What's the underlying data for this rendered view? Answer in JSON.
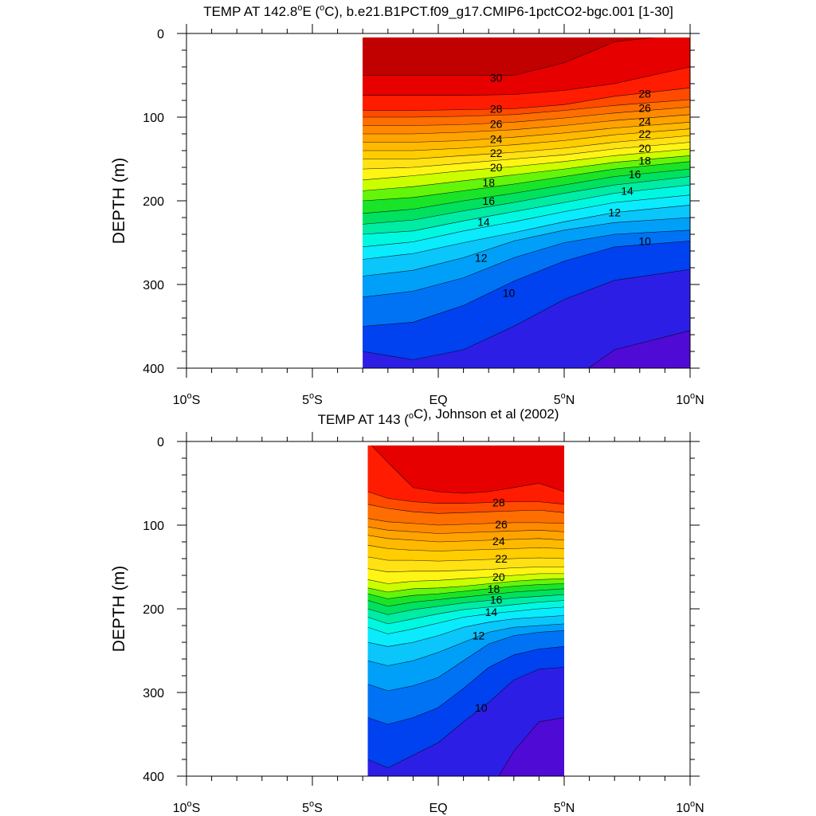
{
  "chart_data": [
    {
      "type": "contour",
      "title_prefix": "TEMP AT 142.8",
      "title_sup": "o",
      "title_mid": "E (",
      "title_unit_sup": "o",
      "title_suffix": "C), b.e21.B1PCT.f09_g17.CMIP6-1pctCO2-bgc.001 [1-30]",
      "ylabel": "DEPTH (m)",
      "xlim": [
        -10,
        10
      ],
      "ylim": [
        0,
        400
      ],
      "y_reversed": true,
      "data_lat_range": [
        -3,
        10
      ],
      "data_depth_range": [
        5,
        400
      ],
      "contour_interval": 1,
      "x_ticks": [
        {
          "value": -10,
          "num": "10",
          "sup": "o",
          "hemi": "S"
        },
        {
          "value": -5,
          "num": "5",
          "sup": "o",
          "hemi": "S"
        },
        {
          "value": 0,
          "num": "EQ",
          "sup": "",
          "hemi": ""
        },
        {
          "value": 5,
          "num": "5",
          "sup": "o",
          "hemi": "N"
        },
        {
          "value": 10,
          "num": "10",
          "sup": "o",
          "hemi": "N"
        }
      ],
      "y_ticks": [
        "0",
        "100",
        "200",
        "300",
        "400"
      ],
      "isotherm_depths": {
        "lat": [
          -3,
          -1,
          1,
          3,
          5,
          7,
          10
        ],
        "30": [
          50,
          50,
          50,
          50,
          35,
          10,
          0
        ],
        "29": [
          74,
          74,
          74,
          73,
          68,
          60,
          40
        ],
        "28": [
          92,
          92,
          91,
          90,
          85,
          75,
          65
        ],
        "27": [
          100,
          100,
          99,
          97,
          92,
          86,
          79
        ],
        "26": [
          110,
          110,
          109,
          106,
          101,
          95,
          88
        ],
        "25": [
          120,
          120,
          118,
          115,
          110,
          104,
          97
        ],
        "24": [
          130,
          130,
          128,
          124,
          119,
          113,
          106
        ],
        "23": [
          140,
          140,
          137,
          133,
          128,
          121,
          114
        ],
        "22": [
          150,
          150,
          146,
          142,
          137,
          130,
          122
        ],
        "21": [
          162,
          160,
          155,
          150,
          145,
          138,
          130
        ],
        "20": [
          175,
          170,
          164,
          159,
          153,
          146,
          138
        ],
        "19": [
          188,
          183,
          176,
          169,
          162,
          154,
          146
        ],
        "18": [
          200,
          196,
          188,
          180,
          171,
          162,
          153
        ],
        "17": [
          215,
          210,
          200,
          191,
          181,
          171,
          162
        ],
        "16": [
          228,
          223,
          212,
          202,
          191,
          181,
          171
        ],
        "15": [
          240,
          236,
          224,
          213,
          202,
          191,
          181
        ],
        "14": [
          255,
          249,
          236,
          225,
          213,
          202,
          193
        ],
        "13": [
          270,
          263,
          250,
          238,
          225,
          214,
          205
        ],
        "12": [
          290,
          283,
          268,
          248,
          235,
          226,
          220
        ],
        "11": [
          315,
          308,
          292,
          268,
          250,
          240,
          235
        ],
        "10": [
          350,
          345,
          325,
          296,
          272,
          255,
          248
        ],
        "9": [
          380,
          390,
          378,
          350,
          318,
          295,
          282
        ],
        "8": [
          460,
          460,
          460,
          460,
          420,
          378,
          355
        ]
      },
      "contour_labels": [
        {
          "text": "30",
          "lat": 2.3,
          "depth": 53
        },
        {
          "text": "28",
          "lat": 8.2,
          "depth": 72
        },
        {
          "text": "28",
          "lat": 2.3,
          "depth": 90
        },
        {
          "text": "26",
          "lat": 8.2,
          "depth": 89
        },
        {
          "text": "24",
          "lat": 8.2,
          "depth": 105
        },
        {
          "text": "26",
          "lat": 2.3,
          "depth": 108
        },
        {
          "text": "22",
          "lat": 8.2,
          "depth": 120
        },
        {
          "text": "24",
          "lat": 2.3,
          "depth": 126
        },
        {
          "text": "20",
          "lat": 8.2,
          "depth": 137
        },
        {
          "text": "22",
          "lat": 2.3,
          "depth": 143
        },
        {
          "text": "18",
          "lat": 8.2,
          "depth": 152
        },
        {
          "text": "20",
          "lat": 2.3,
          "depth": 160
        },
        {
          "text": "16",
          "lat": 7.8,
          "depth": 168
        },
        {
          "text": "18",
          "lat": 2.0,
          "depth": 178
        },
        {
          "text": "14",
          "lat": 7.5,
          "depth": 188
        },
        {
          "text": "16",
          "lat": 2.0,
          "depth": 200
        },
        {
          "text": "12",
          "lat": 7.0,
          "depth": 214
        },
        {
          "text": "14",
          "lat": 1.8,
          "depth": 225
        },
        {
          "text": "10",
          "lat": 8.2,
          "depth": 248
        },
        {
          "text": "12",
          "lat": 1.7,
          "depth": 268
        },
        {
          "text": "10",
          "lat": 2.8,
          "depth": 310
        }
      ]
    },
    {
      "type": "contour",
      "title_prefix": "TEMP AT 143 (",
      "title_sup": "o",
      "title_mid": "",
      "title_unit_sup": "",
      "title_suffix": "C), Johnson et al (2002)",
      "ylabel": "DEPTH (m)",
      "xlim": [
        -10,
        10
      ],
      "ylim": [
        0,
        400
      ],
      "y_reversed": true,
      "data_lat_range": [
        -2.8,
        5
      ],
      "data_depth_range": [
        5,
        400
      ],
      "contour_interval": 1,
      "x_ticks": [
        {
          "value": -10,
          "num": "10",
          "sup": "o",
          "hemi": "S"
        },
        {
          "value": -5,
          "num": "5",
          "sup": "o",
          "hemi": "S"
        },
        {
          "value": 0,
          "num": "EQ",
          "sup": "",
          "hemi": ""
        },
        {
          "value": 5,
          "num": "5",
          "sup": "o",
          "hemi": "N"
        },
        {
          "value": 10,
          "num": "10",
          "sup": "o",
          "hemi": "N"
        }
      ],
      "y_ticks": [
        "0",
        "100",
        "200",
        "300",
        "400"
      ],
      "isotherm_depths": {
        "lat": [
          -2.8,
          -2,
          -1,
          0,
          1,
          2,
          3,
          4,
          5
        ],
        "29": [
          0,
          25,
          55,
          60,
          62,
          60,
          55,
          50,
          60
        ],
        "28": [
          60,
          68,
          72,
          74,
          74,
          73,
          72,
          72,
          75
        ],
        "27": [
          75,
          80,
          84,
          86,
          85,
          84,
          83,
          82,
          85
        ],
        "26": [
          92,
          96,
          98,
          100,
          99,
          98,
          97,
          97,
          98
        ],
        "25": [
          102,
          106,
          108,
          110,
          109,
          108,
          107,
          106,
          108
        ],
        "24": [
          112,
          116,
          118,
          120,
          119,
          118,
          117,
          116,
          118
        ],
        "23": [
          124,
          128,
          130,
          131,
          130,
          129,
          128,
          127,
          128
        ],
        "22": [
          138,
          142,
          142,
          143,
          142,
          141,
          140,
          139,
          140
        ],
        "21": [
          152,
          156,
          155,
          155,
          154,
          153,
          151,
          150,
          150
        ],
        "20": [
          165,
          170,
          167,
          166,
          164,
          162,
          160,
          158,
          158
        ],
        "19": [
          175,
          180,
          176,
          175,
          173,
          170,
          167,
          165,
          164
        ],
        "18": [
          182,
          188,
          184,
          182,
          179,
          176,
          173,
          171,
          170
        ],
        "17": [
          190,
          197,
          192,
          189,
          186,
          183,
          180,
          178,
          176
        ],
        "16": [
          200,
          207,
          201,
          197,
          193,
          190,
          187,
          185,
          183
        ],
        "15": [
          210,
          218,
          212,
          206,
          201,
          198,
          195,
          192,
          190
        ],
        "14": [
          222,
          230,
          224,
          217,
          210,
          206,
          203,
          200,
          198
        ],
        "13": [
          240,
          245,
          240,
          232,
          222,
          216,
          212,
          210,
          208
        ],
        "12": [
          262,
          268,
          262,
          252,
          240,
          228,
          222,
          220,
          218
        ],
        "11": [
          290,
          298,
          292,
          282,
          262,
          242,
          232,
          228,
          226
        ],
        "10": [
          330,
          338,
          330,
          318,
          295,
          270,
          255,
          248,
          245
        ],
        "9": [
          380,
          390,
          375,
          360,
          335,
          312,
          285,
          272,
          270
        ],
        "8": [
          460,
          460,
          460,
          460,
          460,
          420,
          370,
          335,
          330
        ]
      },
      "contour_labels": [
        {
          "text": "28",
          "lat": 2.4,
          "depth": 73
        },
        {
          "text": "26",
          "lat": 2.5,
          "depth": 99
        },
        {
          "text": "24",
          "lat": 2.4,
          "depth": 119
        },
        {
          "text": "22",
          "lat": 2.5,
          "depth": 140
        },
        {
          "text": "20",
          "lat": 2.4,
          "depth": 162
        },
        {
          "text": "18",
          "lat": 2.2,
          "depth": 176
        },
        {
          "text": "16",
          "lat": 2.3,
          "depth": 189
        },
        {
          "text": "14",
          "lat": 2.1,
          "depth": 204
        },
        {
          "text": "12",
          "lat": 1.6,
          "depth": 232
        },
        {
          "text": "10",
          "lat": 1.7,
          "depth": 318
        }
      ]
    }
  ]
}
